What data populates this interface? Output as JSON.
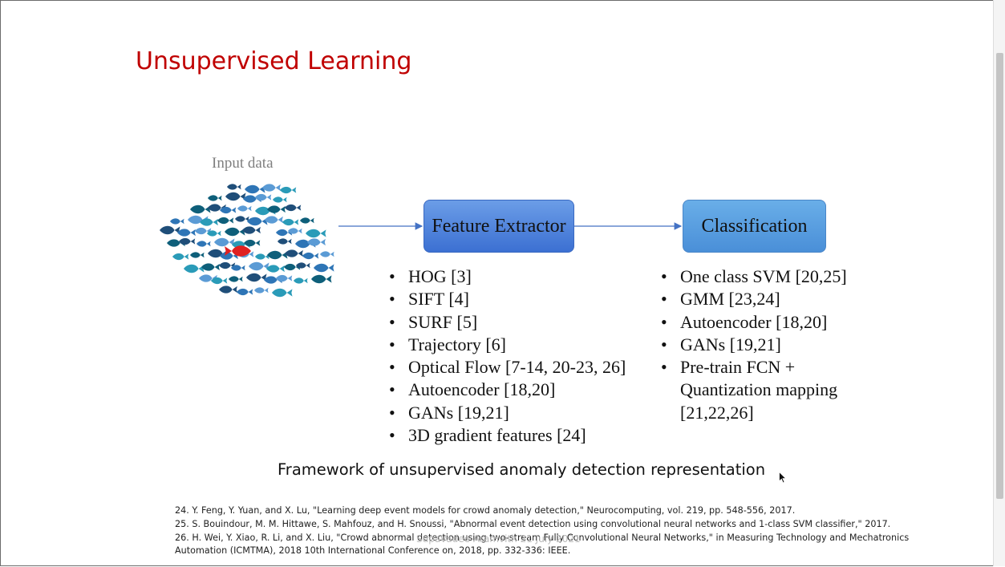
{
  "slide": {
    "title": "Unsupervised Learning",
    "input_label": "Input data",
    "feature_extractor_label": "Feature Extractor",
    "classification_label": "Classification",
    "feature_methods": [
      "HOG [3]",
      "SIFT [4]",
      "SURF [5]",
      "Trajectory [6]",
      "Optical Flow [7-14, 20-23, 26]",
      "Autoencoder [18,20]",
      "GANs [19,21]",
      "3D gradient features [24]"
    ],
    "classification_methods": [
      "One class SVM [20,25]",
      "GMM [23,24]",
      "Autoencoder [18,20]",
      "GANs [19,21]",
      "Pre-train FCN +\nQuantization mapping\n[21,22,26]"
    ],
    "caption": "Framework of unsupervised anomaly detection representation",
    "references": [
      "24. Y. Feng, Y. Yuan, and X. Lu, \"Learning deep event models for crowd anomaly detection,\" Neurocomputing, vol. 219, pp. 548-556, 2017.",
      "25. S. Bouindour, M. M. Hittawe, S. Mahfouz, and H. Snoussi, \"Abnormal event detection using convolutional neural networks and 1-class SVM classifier,\" 2017.",
      "26. H. Wei, Y. Xiao, R. Li, and X. Liu, \"Crowd abnormal detection using two-stream Fully Convolutional Neural Networks,\" in Measuring Technology and Mechatronics Automation (ICMTMA), 2018 10th International Conference on, 2018, pp. 332-336: IEEE."
    ],
    "watermark": "Supavadee Aramvith 21 July 2021"
  },
  "colors": {
    "title": "#c00000",
    "feature_box": "#4a7fdc",
    "classification_box": "#5aa0e2",
    "arrow": "#4472c4",
    "fish_blue_shades": [
      "#1f4e79",
      "#2e75b6",
      "#5b9bd5",
      "#2a9bb8",
      "#0e5f7a"
    ],
    "fish_highlight": "#e02020"
  },
  "icons": {
    "fish_school": "school-of-fish-icon",
    "highlight_fish": "red-fish-icon",
    "cursor": "mouse-cursor-icon"
  }
}
